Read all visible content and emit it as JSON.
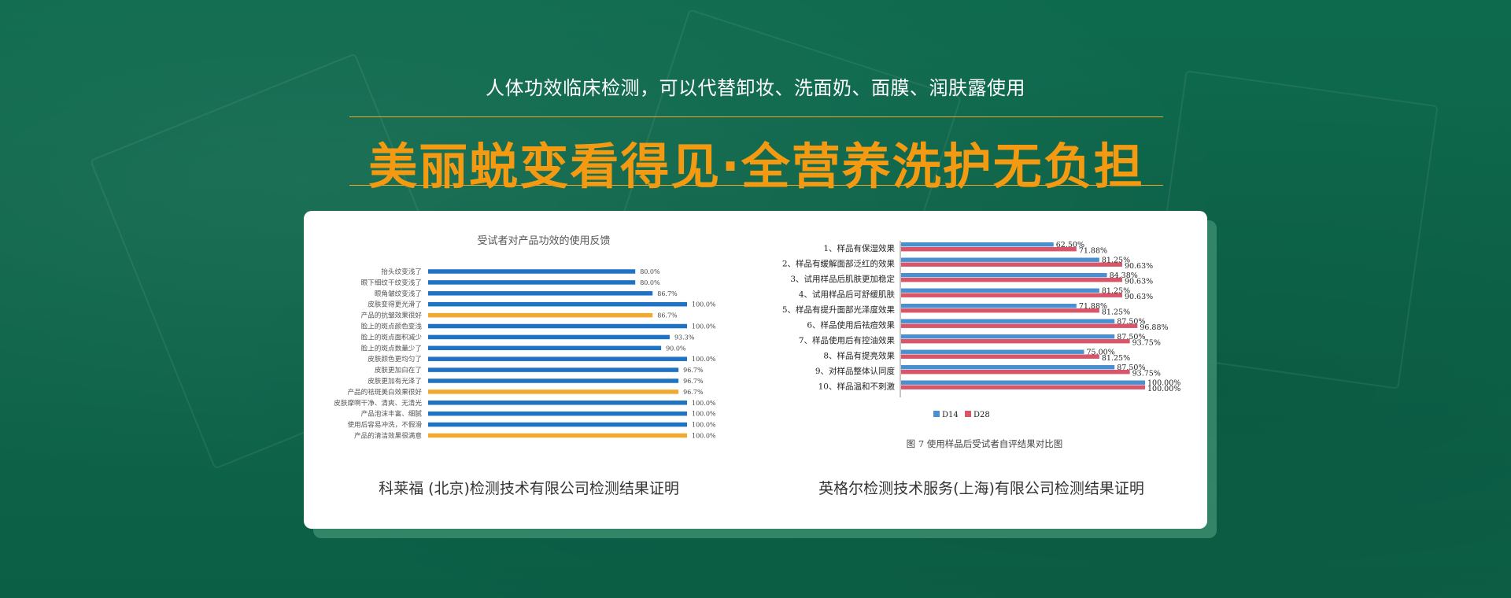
{
  "header": {
    "subtitle": "人体功效临床检测，可以代替卸妆、洗面奶、面膜、润肤露使用",
    "title": "美丽蜕变看得见·全营养洗护无负担"
  },
  "captions": {
    "left": "科莱福 (北京)检测技术有限公司检测结果证明",
    "right": "英格尔检测技术服务(上海)有限公司检测结果证明"
  },
  "colors": {
    "background": "#0f6b4e",
    "title": "#f39a12",
    "bar_blue": "#1f73c4",
    "bar_orange": "#f2a92f",
    "d14": "#4a8fd0",
    "d28": "#d9566a"
  },
  "chart_data": [
    {
      "type": "bar",
      "orientation": "horizontal",
      "title": "受试者对产品功效的使用反馈",
      "xlim": [
        0,
        100
      ],
      "categories": [
        "抬头纹变浅了",
        "眼下细纹干纹变浅了",
        "眼角皱纹变浅了",
        "皮肤变得更光滑了",
        "产品的抗皱效果很好",
        "脸上的斑点颜色变浅",
        "脸上的斑点面积减少",
        "脸上的斑点数量少了",
        "皮肤颜色更均匀了",
        "皮肤更加白在了",
        "皮肤更加有光泽了",
        "产品的祛斑美白效果很好",
        "皮肤摩啊干净、清爽、无清光",
        "产品泡沫丰富、细腻",
        "使用后容易冲洗，不假滑",
        "产品的清洁效果很满意"
      ],
      "values": [
        80.0,
        80.0,
        86.7,
        100.0,
        86.7,
        100.0,
        93.3,
        90.0,
        100.0,
        96.7,
        96.7,
        96.7,
        100.0,
        100.0,
        100.0,
        100.0
      ],
      "value_labels": [
        "80.0%",
        "80.0%",
        "86.7%",
        "100.0%",
        "86.7%",
        "100.0%",
        "93.3%",
        "90.0%",
        "100.0%",
        "96.7%",
        "96.7%",
        "96.7%",
        "100.0%",
        "100.0%",
        "100.0%",
        "100.0%"
      ],
      "highlight": [
        false,
        false,
        false,
        false,
        true,
        false,
        false,
        false,
        false,
        false,
        false,
        true,
        false,
        false,
        false,
        true
      ]
    },
    {
      "type": "bar",
      "orientation": "horizontal",
      "title": "图 7  使用样品后受试者自评结果对比图",
      "xlim": [
        0,
        100
      ],
      "legend": "bottom",
      "categories": [
        "1、样品有保湿效果",
        "2、样品有缓解面部泛红的效果",
        "3、试用样品后肌肤更加稳定",
        "4、试用样品后可舒缓肌肤",
        "5、样品有提升面部光泽度效果",
        "6、样品使用后祛痘效果",
        "7、样品使用后有控油效果",
        "8、样品有提亮效果",
        "9、对样品整体认同度",
        "10、样品温和不刺激"
      ],
      "series": [
        {
          "name": "D14",
          "values": [
            62.5,
            81.25,
            84.38,
            81.25,
            71.88,
            87.5,
            87.5,
            75.0,
            87.5,
            100.0
          ],
          "labels": [
            "62.50%",
            "81.25%",
            "84.38%",
            "81.25%",
            "71.88%",
            "87.50%",
            "87.50%",
            "75.00%",
            "87.50%",
            "100.00%"
          ]
        },
        {
          "name": "D28",
          "values": [
            71.88,
            90.63,
            90.63,
            90.63,
            81.25,
            96.88,
            93.75,
            81.25,
            93.75,
            100.0
          ],
          "labels": [
            "71.88%",
            "90.63%",
            "90.63%",
            "90.63%",
            "81.25%",
            "96.88%",
            "93.75%",
            "81.25%",
            "93.75%",
            "100.00%"
          ]
        }
      ]
    }
  ]
}
